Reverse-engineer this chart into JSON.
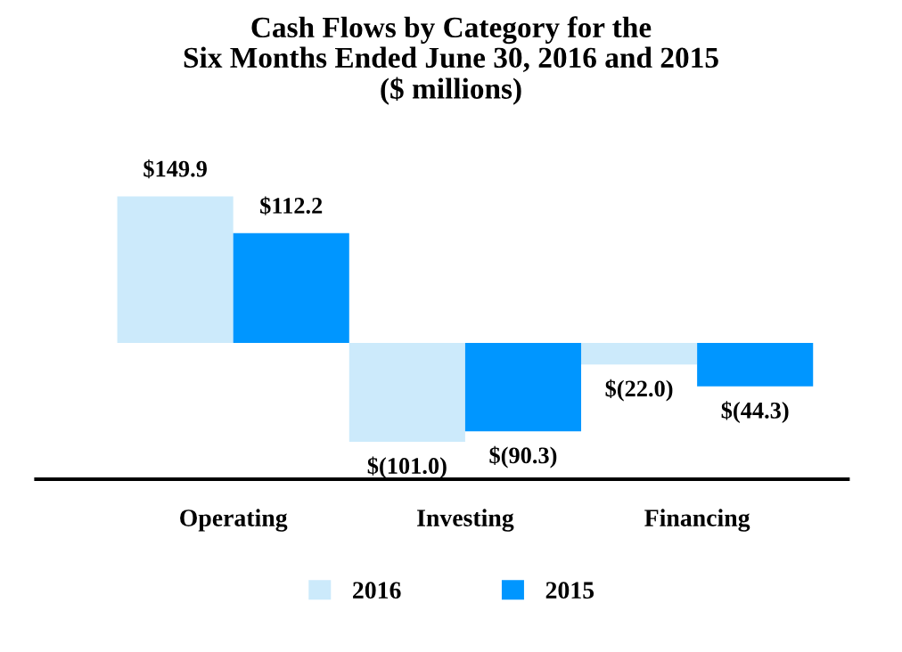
{
  "chart_data": {
    "type": "bar",
    "title": "Cash Flows by Category for the\nSix Months Ended June 30, 2016 and 2015\n($ millions)",
    "categories": [
      "Operating",
      "Investing",
      "Financing"
    ],
    "legend": "bottom",
    "series": [
      {
        "name": "2016",
        "color": "#cceafb",
        "values": [
          149.9,
          -101.0,
          -22.0
        ],
        "value_labels": [
          "$149.9",
          "$(101.0)",
          "$(22.0)"
        ]
      },
      {
        "name": "2015",
        "color": "#0096ff",
        "values": [
          112.2,
          -90.3,
          -44.3
        ],
        "value_labels": [
          "$112.2",
          "$(90.3)",
          "$(44.3)"
        ]
      }
    ]
  }
}
